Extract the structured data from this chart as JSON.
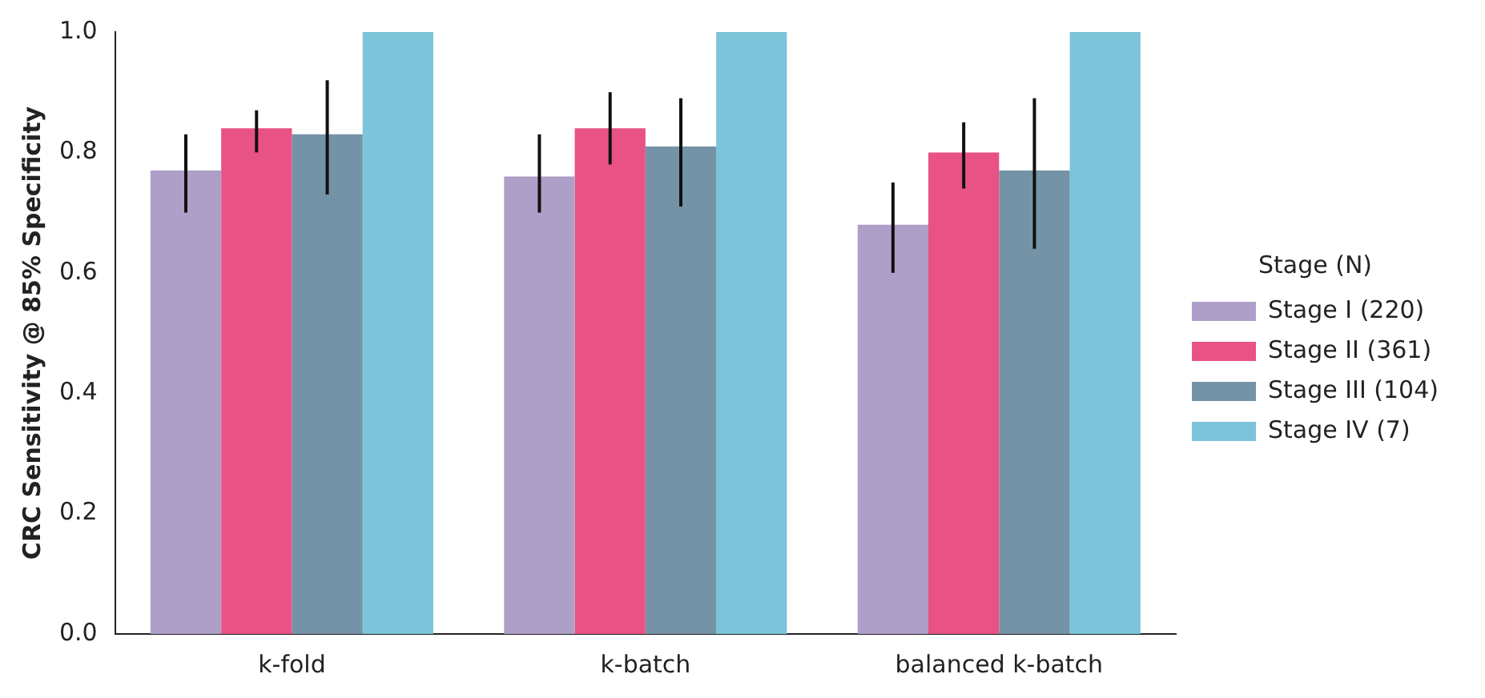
{
  "chart_data": {
    "type": "bar",
    "ylabel": "CRC Sensitivity @ 85% Specificity",
    "legend_title": "Stage (N)",
    "categories": [
      "k-fold",
      "k-batch",
      "balanced k-batch"
    ],
    "series": [
      {
        "name": "Stage I (220)",
        "color": "#ae9fc8",
        "values": [
          0.77,
          0.76,
          0.68
        ],
        "errors": [
          [
            0.7,
            0.83
          ],
          [
            0.7,
            0.83
          ],
          [
            0.6,
            0.75
          ]
        ]
      },
      {
        "name": "Stage II (361)",
        "color": "#e85285",
        "values": [
          0.84,
          0.84,
          0.8
        ],
        "errors": [
          [
            0.8,
            0.87
          ],
          [
            0.78,
            0.9
          ],
          [
            0.74,
            0.85
          ]
        ]
      },
      {
        "name": "Stage III (104)",
        "color": "#7593a7",
        "values": [
          0.83,
          0.81,
          0.77
        ],
        "errors": [
          [
            0.73,
            0.92
          ],
          [
            0.71,
            0.89
          ],
          [
            0.64,
            0.89
          ]
        ]
      },
      {
        "name": "Stage IV (7)",
        "color": "#7cc4d9",
        "values": [
          1.0,
          1.0,
          1.0
        ]
      }
    ],
    "ylim": [
      0,
      1
    ],
    "yticks": [
      {
        "value": 0,
        "label": "0.0"
      },
      0.2,
      0.4,
      0.6,
      0.8,
      {
        "value": 1,
        "label": "1.0"
      }
    ],
    "grid": false,
    "legend": "right"
  }
}
